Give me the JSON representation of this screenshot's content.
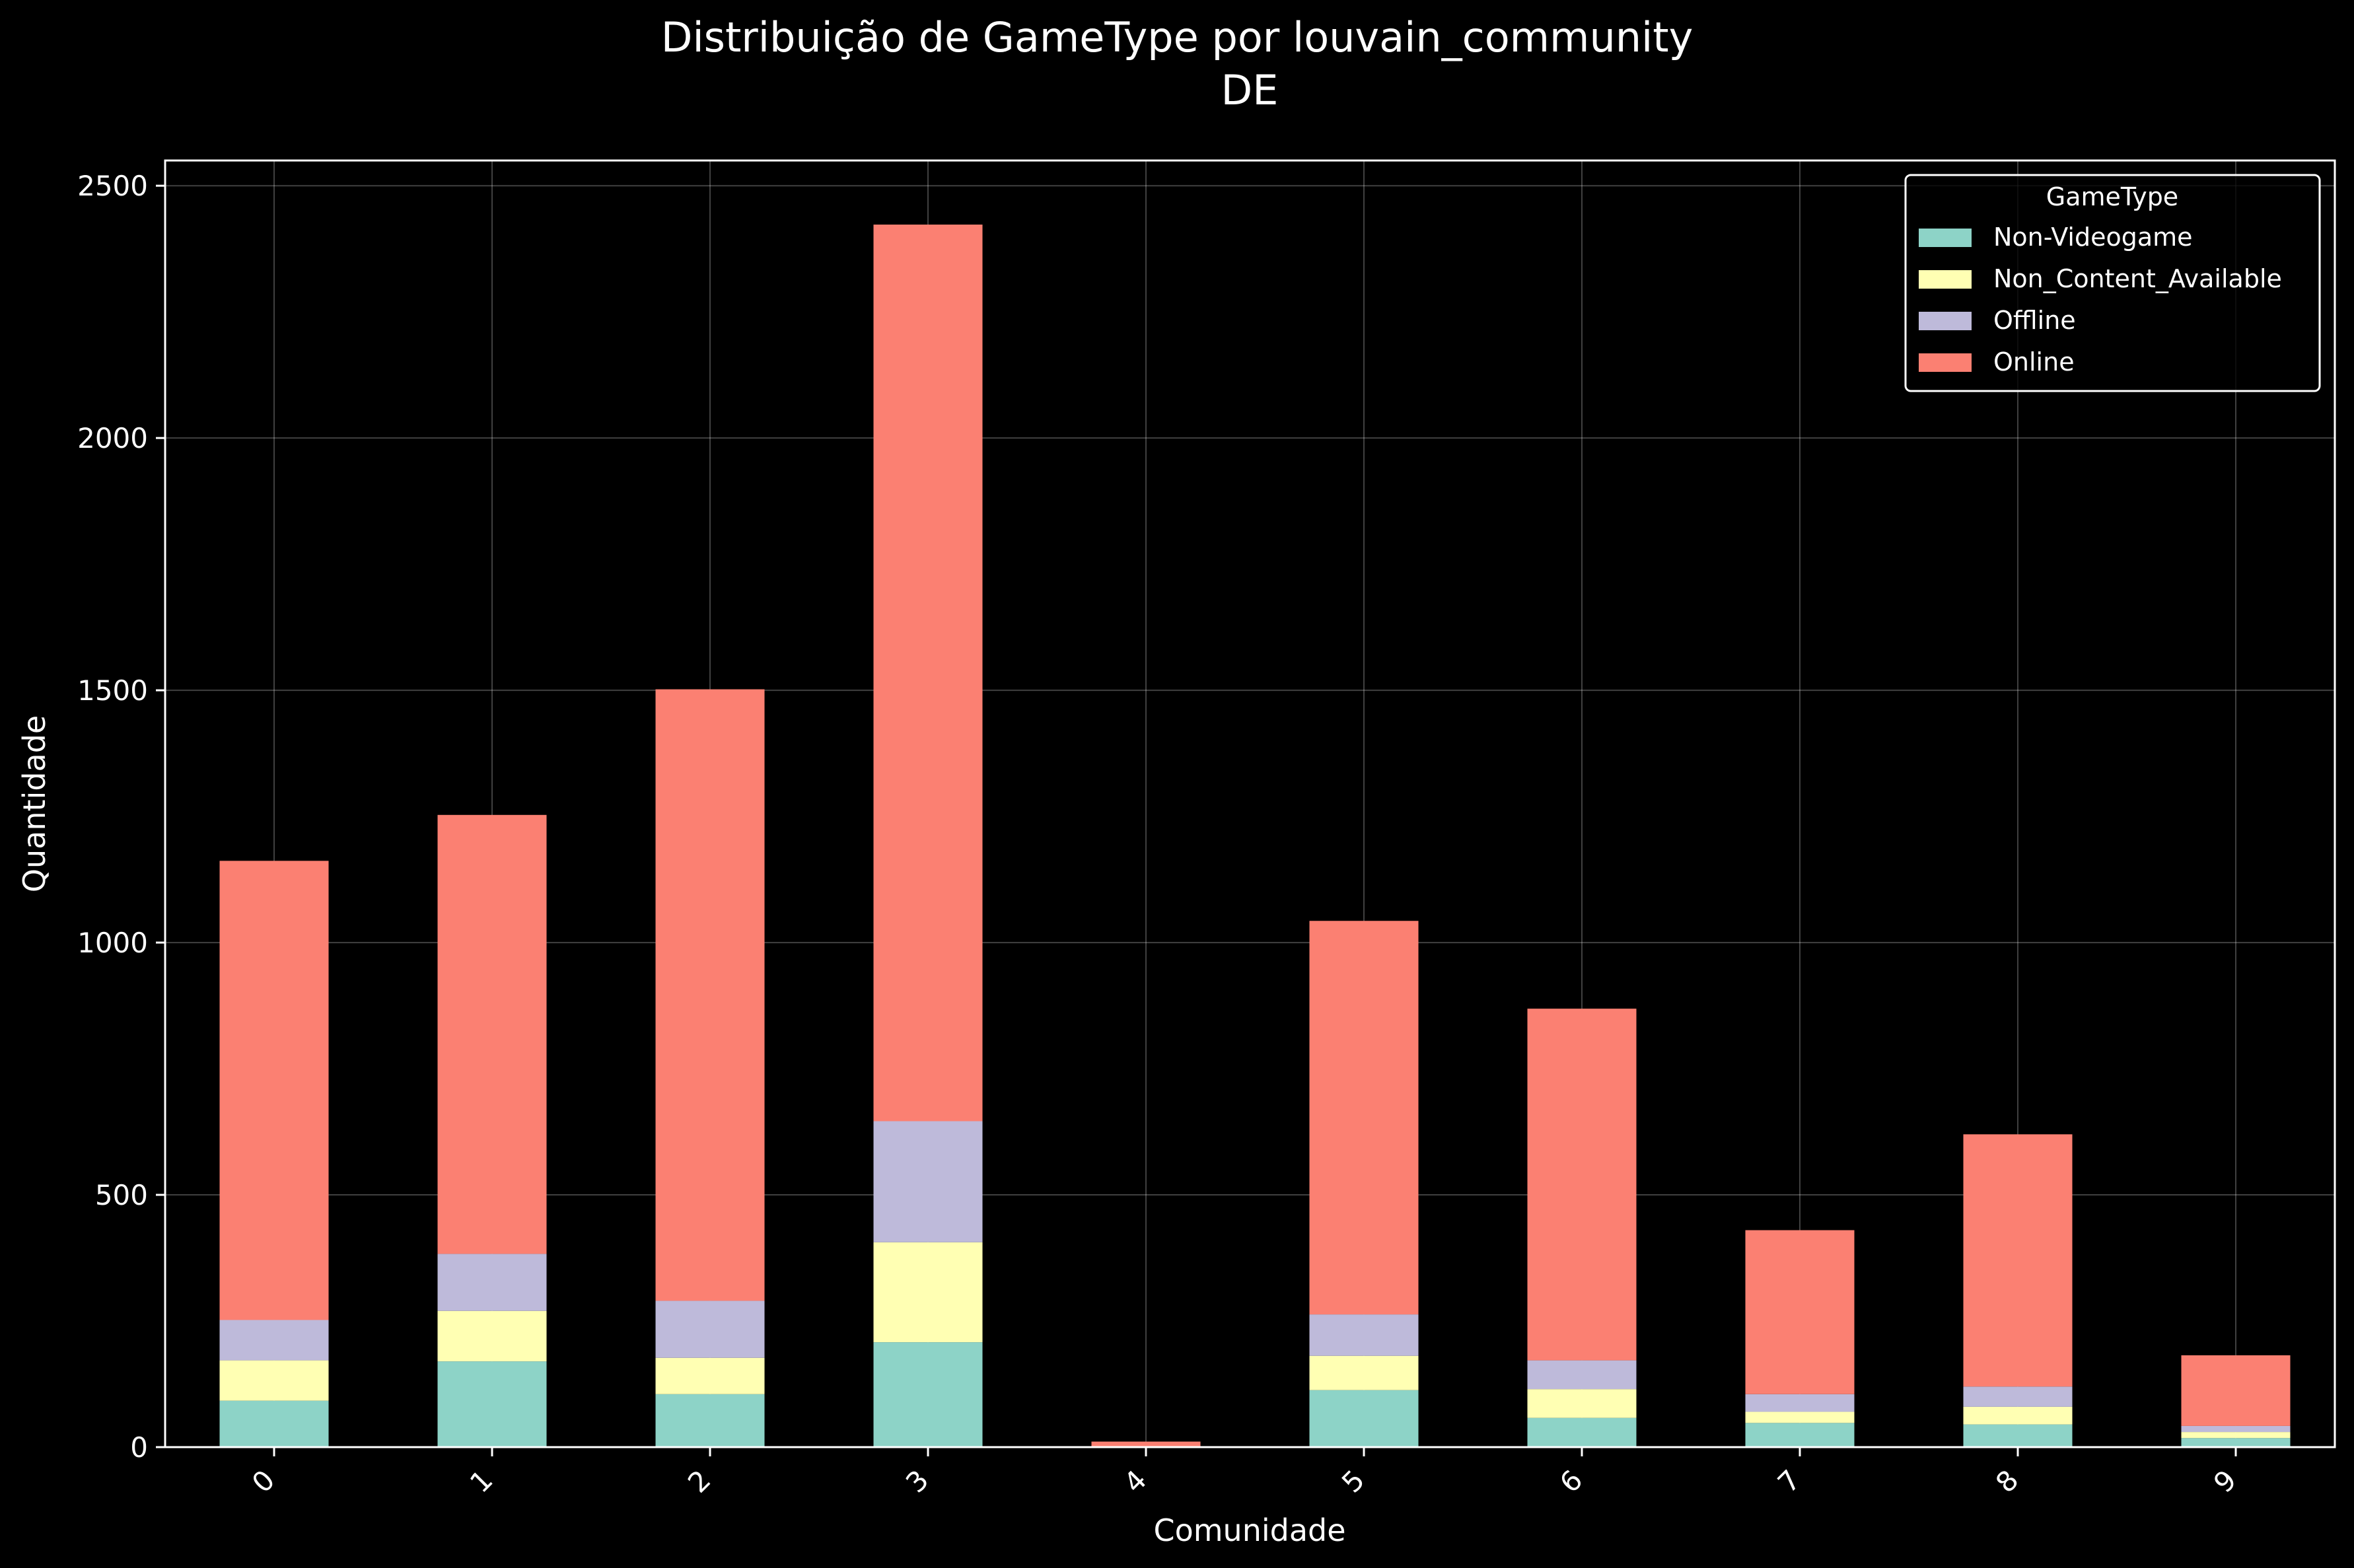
{
  "chart_data": {
    "type": "bar",
    "stacked": true,
    "title": "Distribuição de GameType por louvain_community",
    "subtitle": "DE",
    "xlabel": "Comunidade",
    "ylabel": "Quantidade",
    "categories": [
      "0",
      "1",
      "2",
      "3",
      "4",
      "5",
      "6",
      "7",
      "8",
      "9"
    ],
    "ylim": [
      0,
      2550
    ],
    "yticks": [
      0,
      500,
      1000,
      1500,
      2000,
      2500
    ],
    "grid": true,
    "legend": {
      "title": "GameType",
      "placement": "top-right"
    },
    "series": [
      {
        "name": "Non-Videogame",
        "color": "#8dd3c7",
        "values": [
          92,
          170,
          105,
          208,
          0,
          113,
          58,
          48,
          45,
          18
        ]
      },
      {
        "name": "Non_Content_Available",
        "color": "#ffffb3",
        "values": [
          80,
          100,
          72,
          198,
          0,
          68,
          57,
          22,
          35,
          12
        ]
      },
      {
        "name": "Offline",
        "color": "#bebada",
        "values": [
          80,
          113,
          113,
          240,
          0,
          82,
          57,
          35,
          40,
          12
        ]
      },
      {
        "name": "Online",
        "color": "#fb8072",
        "values": [
          910,
          870,
          1212,
          1777,
          11,
          780,
          697,
          325,
          500,
          140
        ]
      }
    ]
  }
}
